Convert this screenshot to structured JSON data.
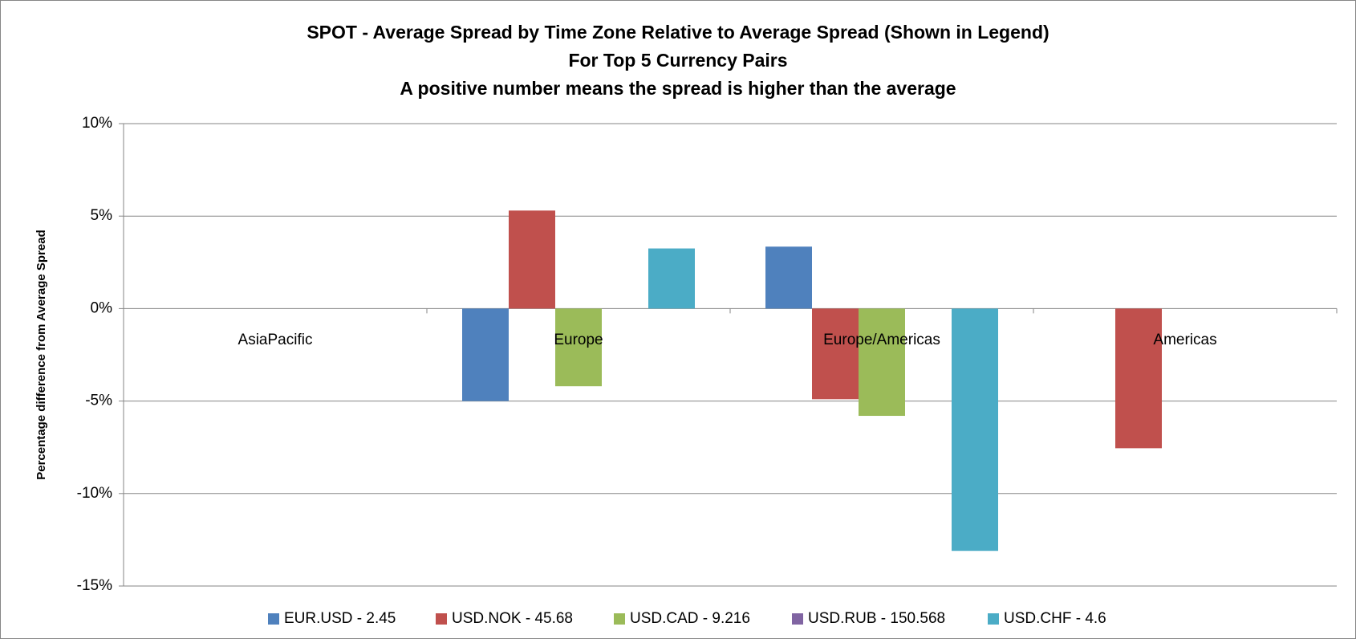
{
  "chart_data": {
    "type": "bar",
    "title": "SPOT - Average Spread by Time Zone Relative to Average Spread (Shown in Legend)",
    "subtitle": [
      "For Top 5 Currency Pairs",
      "A positive number means the spread is higher than the average"
    ],
    "y_label": "Percentage difference from Average Spread",
    "categories": [
      "AsiaPacific",
      "Europe",
      "Europe/Americas",
      "Americas"
    ],
    "series": [
      {
        "name": "EUR.USD  - 2.45",
        "color": "#4f81bd",
        "values": [
          null,
          -5.0,
          3.35,
          null
        ]
      },
      {
        "name": "USD.NOK - 45.68",
        "color": "#c0504d",
        "values": [
          null,
          5.3,
          -4.9,
          -7.55
        ]
      },
      {
        "name": "USD.CAD - 9.216",
        "color": "#9bbb59",
        "values": [
          null,
          -4.2,
          -5.8,
          null
        ]
      },
      {
        "name": "USD.RUB - 150.568",
        "color": "#8064a2",
        "values": [
          null,
          null,
          null,
          null
        ]
      },
      {
        "name": "USD.CHF - 4.6",
        "color": "#4bacc6",
        "values": [
          null,
          3.25,
          -13.1,
          null
        ]
      }
    ],
    "ylim": [
      -15,
      10
    ],
    "yticks": [
      {
        "value": -15,
        "label": "-15%"
      },
      {
        "value": -10,
        "label": "-10%"
      },
      {
        "value": -5,
        "label": "-5%"
      },
      {
        "value": 0,
        "label": "0%"
      },
      {
        "value": 5,
        "label": "5%"
      },
      {
        "value": 10,
        "label": "10%"
      }
    ],
    "grid": true,
    "legend": "bottom"
  }
}
